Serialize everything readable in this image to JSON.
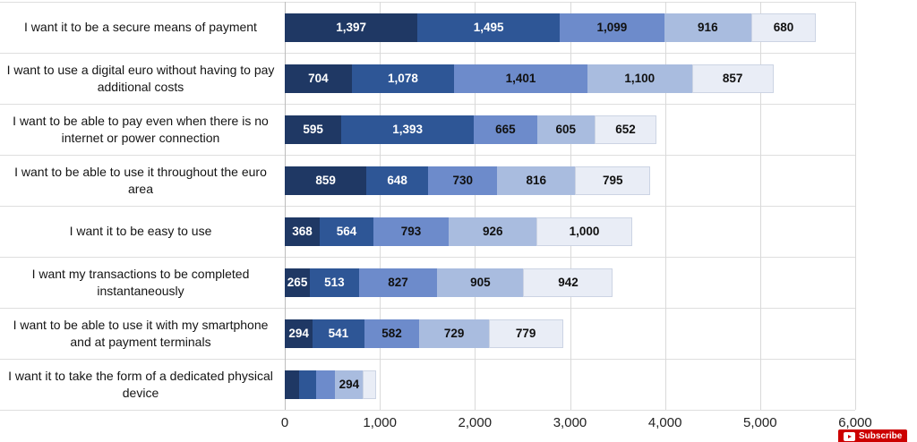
{
  "chart_data": {
    "type": "bar",
    "orientation": "horizontal",
    "stacked": true,
    "title": "",
    "xlabel": "",
    "ylabel": "",
    "xlim": [
      0,
      6000
    ],
    "grid": true,
    "legend": "none",
    "categories": [
      "I want it to be a secure means of payment",
      "I want to use a digital euro without having to pay additional costs",
      "I want to be able to pay even when there is no internet or power connection",
      "I want to be able to use it throughout the euro area",
      "I want it to be easy to use",
      "I want my transactions to be completed instantaneously",
      "I want to be able to use it with my smartphone and at payment terminals",
      "I want it to take the form of a dedicated physical device"
    ],
    "series": [
      {
        "name": "segment-1",
        "color": "#1f3864",
        "values": [
          1397,
          704,
          595,
          859,
          368,
          265,
          294,
          150
        ]
      },
      {
        "name": "segment-2",
        "color": "#2e5696",
        "values": [
          1495,
          1078,
          1393,
          648,
          564,
          513,
          541,
          180
        ]
      },
      {
        "name": "segment-3",
        "color": "#6d8bcb",
        "values": [
          1099,
          1401,
          665,
          730,
          793,
          827,
          582,
          200
        ]
      },
      {
        "name": "segment-4",
        "color": "#a9bcdf",
        "values": [
          916,
          1100,
          605,
          816,
          926,
          905,
          729,
          294
        ]
      },
      {
        "name": "segment-5",
        "color": "#e9edf6",
        "values": [
          680,
          857,
          652,
          795,
          1000,
          942,
          779,
          140
        ]
      }
    ],
    "segment_labels": [
      [
        "1,397",
        "1,495",
        "1,099",
        "916",
        "680"
      ],
      [
        "704",
        "1,078",
        "1,401",
        "1,100",
        "857"
      ],
      [
        "595",
        "1,393",
        "665",
        "605",
        "652"
      ],
      [
        "859",
        "648",
        "730",
        "816",
        "795"
      ],
      [
        "368",
        "564",
        "793",
        "926",
        "1,000"
      ],
      [
        "265",
        "513",
        "827",
        "905",
        "942"
      ],
      [
        "294",
        "541",
        "582",
        "729",
        "779"
      ],
      [
        "",
        "",
        "",
        "294",
        ""
      ]
    ],
    "label_text_colors": [
      "#ffffff",
      "#ffffff",
      "#111111",
      "#111111",
      "#111111"
    ],
    "x_ticks": [
      "0",
      "1,000",
      "2,000",
      "3,000",
      "4,000",
      "5,000",
      "6,000"
    ]
  },
  "overlay": {
    "subscribe_label": "Subscribe"
  }
}
